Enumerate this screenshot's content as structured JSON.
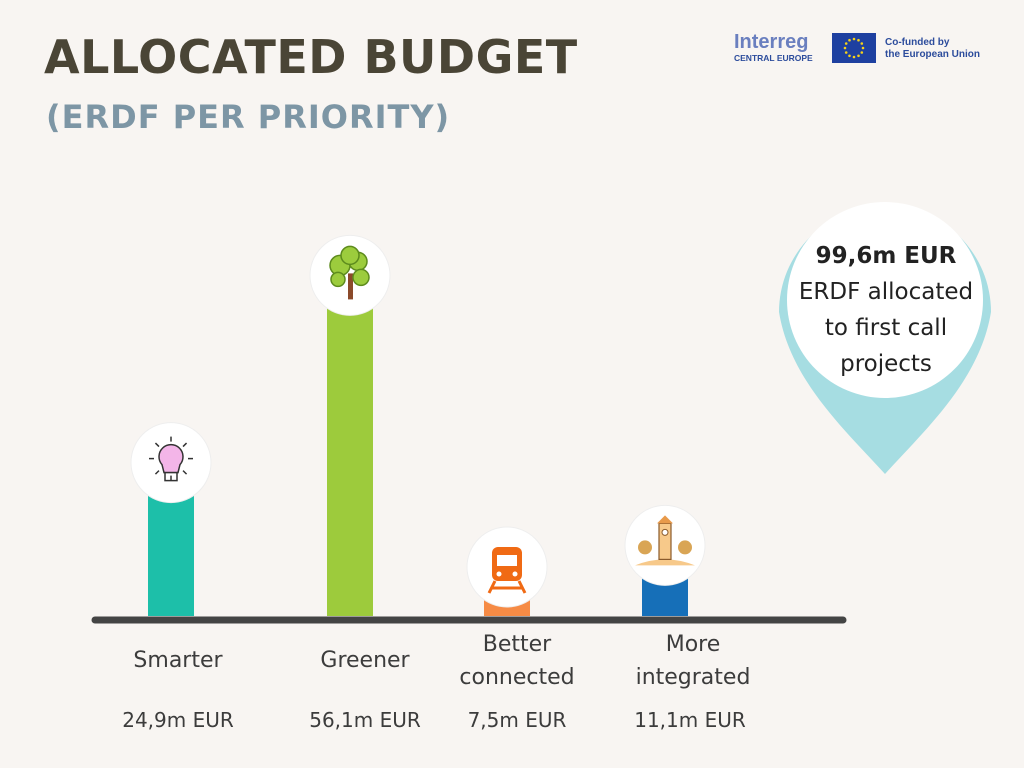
{
  "title": "ALLOCATED BUDGET",
  "subtitle": "(ERDF PER PRIORITY)",
  "logo": {
    "brand": "Interreg",
    "region": "CENTRAL EUROPE",
    "cofund_line1": "Co-funded by",
    "cofund_line2": "the European Union"
  },
  "callout": {
    "amount": "99,6m EUR",
    "line1": "ERDF allocated",
    "line2": "to first call",
    "line3": "projects"
  },
  "colors": {
    "smarter": "#1dbfa9",
    "greener": "#9dcb3c",
    "better_connected": "#f68b45",
    "more_integrated": "#166fb8",
    "pin": "#a6dde2",
    "axis": "#444444"
  },
  "icons": [
    "lightbulb-icon",
    "tree-icon",
    "train-icon",
    "town-icon"
  ],
  "chart_data": {
    "type": "bar",
    "title": "ALLOCATED BUDGET",
    "subtitle": "(ERDF PER PRIORITY)",
    "categories": [
      "Smarter",
      "Greener",
      "Better connected",
      "More integrated"
    ],
    "category_lines": [
      [
        "Smarter"
      ],
      [
        "Greener"
      ],
      [
        "Better",
        "connected"
      ],
      [
        "More",
        "integrated"
      ]
    ],
    "values": [
      24.9,
      56.1,
      7.5,
      11.1
    ],
    "value_labels": [
      "24,9m EUR",
      "56,1m EUR",
      "7,5m EUR",
      "11,1m EUR"
    ],
    "unit": "m EUR",
    "total_label": "99,6m EUR"
  }
}
